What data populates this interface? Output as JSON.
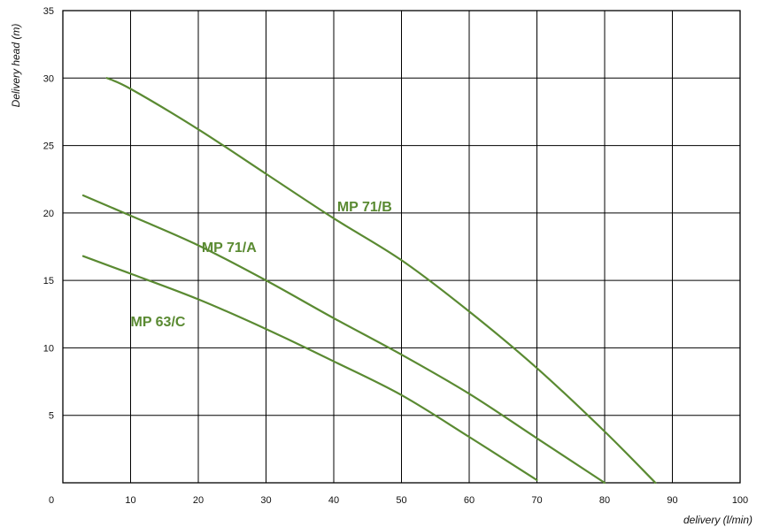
{
  "chart_data": {
    "type": "line",
    "title": "",
    "xlabel": "delivery (l/min)",
    "ylabel": "Delivery head (m)",
    "xlim": [
      0,
      100
    ],
    "ylim": [
      0,
      35
    ],
    "x_ticks": [
      "0",
      "10",
      "20",
      "30",
      "40",
      "50",
      "60",
      "70",
      "80",
      "90",
      "100"
    ],
    "y_ticks": [
      "5",
      "10",
      "15",
      "20",
      "25",
      "30",
      "35"
    ],
    "grid": true,
    "legend": "none",
    "line_color": "#5a8a32",
    "series": [
      {
        "name": "MP 71/B",
        "label_at": [
          40.5,
          20.5
        ],
        "x": [
          6.5,
          10,
          20,
          30,
          40,
          50,
          60,
          70,
          80,
          87.5
        ],
        "y": [
          30,
          29.2,
          26.2,
          22.9,
          19.6,
          16.5,
          12.7,
          8.5,
          3.8,
          0
        ]
      },
      {
        "name": "MP 71/A",
        "label_at": [
          20.5,
          17.5
        ],
        "x": [
          3,
          10,
          20,
          30,
          40,
          50,
          60,
          70,
          80
        ],
        "y": [
          21.3,
          19.8,
          17.6,
          15.0,
          12.2,
          9.5,
          6.6,
          3.3,
          0
        ]
      },
      {
        "name": "MP 63/C",
        "label_at": [
          10,
          12
        ],
        "x": [
          3,
          10,
          20,
          30,
          40,
          50,
          60,
          70
        ],
        "y": [
          16.8,
          15.5,
          13.6,
          11.4,
          9.0,
          6.5,
          3.4,
          0.2
        ]
      }
    ]
  }
}
